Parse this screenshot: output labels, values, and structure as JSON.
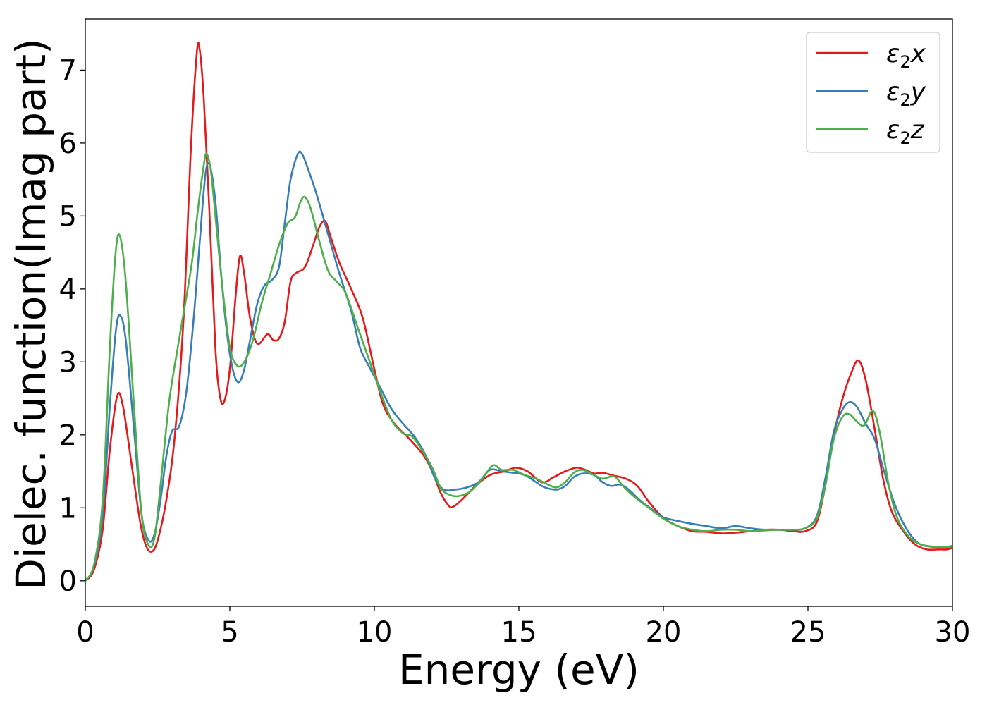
{
  "chart_data": {
    "type": "line",
    "xlabel": "Energy (eV)",
    "ylabel": "Dielec. function(Imag part)",
    "xlim": [
      0,
      30
    ],
    "ylim": [
      -0.35,
      7.7
    ],
    "xticks": [
      0,
      5,
      10,
      15,
      20,
      25,
      30
    ],
    "yticks": [
      0,
      1,
      2,
      3,
      4,
      5,
      6,
      7
    ],
    "grid": false,
    "legend_position": "top-right",
    "series": [
      {
        "name": "ε2x",
        "legend_base": "ε",
        "legend_sub": "2",
        "legend_tail": "x",
        "color": "#e41a1c",
        "points": [
          [
            0,
            0
          ],
          [
            0.3,
            0.15
          ],
          [
            0.6,
            0.7
          ],
          [
            0.85,
            1.8
          ],
          [
            1.1,
            2.53
          ],
          [
            1.3,
            2.4
          ],
          [
            1.6,
            1.6
          ],
          [
            1.9,
            0.8
          ],
          [
            2.1,
            0.48
          ],
          [
            2.3,
            0.4
          ],
          [
            2.5,
            0.55
          ],
          [
            2.8,
            1.1
          ],
          [
            3.1,
            2.0
          ],
          [
            3.4,
            3.6
          ],
          [
            3.65,
            5.9
          ],
          [
            3.85,
            7.2
          ],
          [
            3.95,
            7.3
          ],
          [
            4.1,
            6.6
          ],
          [
            4.3,
            5.0
          ],
          [
            4.5,
            3.2
          ],
          [
            4.65,
            2.55
          ],
          [
            4.8,
            2.45
          ],
          [
            5.0,
            2.9
          ],
          [
            5.2,
            3.9
          ],
          [
            5.35,
            4.45
          ],
          [
            5.5,
            4.2
          ],
          [
            5.7,
            3.6
          ],
          [
            5.95,
            3.25
          ],
          [
            6.3,
            3.38
          ],
          [
            6.5,
            3.3
          ],
          [
            6.7,
            3.32
          ],
          [
            6.9,
            3.55
          ],
          [
            7.1,
            4.1
          ],
          [
            7.3,
            4.22
          ],
          [
            7.6,
            4.3
          ],
          [
            7.9,
            4.62
          ],
          [
            8.1,
            4.85
          ],
          [
            8.3,
            4.93
          ],
          [
            8.5,
            4.7
          ],
          [
            8.8,
            4.35
          ],
          [
            9.2,
            4.0
          ],
          [
            9.6,
            3.6
          ],
          [
            10.0,
            2.9
          ],
          [
            10.3,
            2.42
          ],
          [
            10.7,
            2.15
          ],
          [
            11.2,
            1.95
          ],
          [
            11.7,
            1.72
          ],
          [
            12.0,
            1.5
          ],
          [
            12.3,
            1.2
          ],
          [
            12.55,
            1.04
          ],
          [
            12.7,
            1.01
          ],
          [
            13.0,
            1.1
          ],
          [
            13.5,
            1.3
          ],
          [
            14.0,
            1.45
          ],
          [
            14.5,
            1.5
          ],
          [
            14.9,
            1.55
          ],
          [
            15.3,
            1.5
          ],
          [
            15.8,
            1.35
          ],
          [
            16.2,
            1.42
          ],
          [
            16.6,
            1.5
          ],
          [
            17.0,
            1.55
          ],
          [
            17.3,
            1.52
          ],
          [
            17.6,
            1.47
          ],
          [
            17.9,
            1.48
          ],
          [
            18.3,
            1.44
          ],
          [
            18.7,
            1.4
          ],
          [
            19.1,
            1.3
          ],
          [
            19.5,
            1.08
          ],
          [
            20.0,
            0.86
          ],
          [
            20.5,
            0.75
          ],
          [
            21.0,
            0.68
          ],
          [
            21.5,
            0.67
          ],
          [
            22.0,
            0.65
          ],
          [
            22.5,
            0.66
          ],
          [
            23.0,
            0.68
          ],
          [
            23.5,
            0.7
          ],
          [
            24.0,
            0.7
          ],
          [
            24.5,
            0.68
          ],
          [
            24.9,
            0.68
          ],
          [
            25.3,
            0.8
          ],
          [
            25.6,
            1.3
          ],
          [
            25.9,
            2.0
          ],
          [
            26.2,
            2.5
          ],
          [
            26.5,
            2.85
          ],
          [
            26.75,
            3.02
          ],
          [
            27.0,
            2.75
          ],
          [
            27.3,
            2.1
          ],
          [
            27.6,
            1.4
          ],
          [
            27.9,
            0.95
          ],
          [
            28.3,
            0.68
          ],
          [
            28.7,
            0.5
          ],
          [
            29.1,
            0.43
          ],
          [
            29.5,
            0.43
          ],
          [
            29.8,
            0.43
          ],
          [
            30.0,
            0.45
          ]
        ]
      },
      {
        "name": "ε2y",
        "legend_base": "ε",
        "legend_sub": "2",
        "legend_tail": "y",
        "color": "#377eb8",
        "points": [
          [
            0,
            0
          ],
          [
            0.3,
            0.2
          ],
          [
            0.6,
            0.9
          ],
          [
            0.85,
            2.4
          ],
          [
            1.05,
            3.4
          ],
          [
            1.2,
            3.64
          ],
          [
            1.4,
            3.3
          ],
          [
            1.7,
            2.0
          ],
          [
            1.95,
            0.9
          ],
          [
            2.2,
            0.55
          ],
          [
            2.4,
            0.65
          ],
          [
            2.6,
            1.1
          ],
          [
            2.8,
            1.7
          ],
          [
            3.0,
            2.05
          ],
          [
            3.25,
            2.12
          ],
          [
            3.5,
            2.6
          ],
          [
            3.75,
            3.6
          ],
          [
            3.95,
            4.6
          ],
          [
            4.15,
            5.55
          ],
          [
            4.3,
            5.7
          ],
          [
            4.5,
            5.2
          ],
          [
            4.7,
            4.2
          ],
          [
            4.9,
            3.4
          ],
          [
            5.1,
            2.9
          ],
          [
            5.3,
            2.72
          ],
          [
            5.5,
            2.9
          ],
          [
            5.7,
            3.3
          ],
          [
            5.95,
            3.8
          ],
          [
            6.2,
            4.05
          ],
          [
            6.45,
            4.12
          ],
          [
            6.7,
            4.3
          ],
          [
            6.9,
            4.9
          ],
          [
            7.1,
            5.5
          ],
          [
            7.35,
            5.85
          ],
          [
            7.5,
            5.85
          ],
          [
            7.7,
            5.65
          ],
          [
            8.0,
            5.3
          ],
          [
            8.4,
            4.75
          ],
          [
            8.8,
            4.2
          ],
          [
            9.2,
            3.7
          ],
          [
            9.5,
            3.2
          ],
          [
            9.8,
            2.95
          ],
          [
            10.2,
            2.65
          ],
          [
            10.6,
            2.35
          ],
          [
            11.0,
            2.15
          ],
          [
            11.4,
            1.97
          ],
          [
            11.8,
            1.7
          ],
          [
            12.1,
            1.4
          ],
          [
            12.4,
            1.25
          ],
          [
            12.8,
            1.25
          ],
          [
            13.2,
            1.28
          ],
          [
            13.6,
            1.35
          ],
          [
            14.0,
            1.52
          ],
          [
            14.4,
            1.5
          ],
          [
            14.8,
            1.48
          ],
          [
            15.2,
            1.45
          ],
          [
            15.6,
            1.35
          ],
          [
            15.9,
            1.28
          ],
          [
            16.3,
            1.25
          ],
          [
            16.6,
            1.3
          ],
          [
            16.9,
            1.42
          ],
          [
            17.2,
            1.47
          ],
          [
            17.6,
            1.45
          ],
          [
            17.9,
            1.35
          ],
          [
            18.2,
            1.3
          ],
          [
            18.5,
            1.32
          ],
          [
            18.8,
            1.25
          ],
          [
            19.2,
            1.1
          ],
          [
            19.6,
            0.98
          ],
          [
            20.0,
            0.87
          ],
          [
            20.5,
            0.82
          ],
          [
            21.0,
            0.78
          ],
          [
            21.5,
            0.75
          ],
          [
            22.0,
            0.72
          ],
          [
            22.5,
            0.75
          ],
          [
            23.0,
            0.72
          ],
          [
            23.5,
            0.7
          ],
          [
            24.0,
            0.7
          ],
          [
            24.5,
            0.7
          ],
          [
            24.9,
            0.72
          ],
          [
            25.3,
            0.88
          ],
          [
            25.6,
            1.4
          ],
          [
            25.9,
            2.05
          ],
          [
            26.2,
            2.35
          ],
          [
            26.45,
            2.45
          ],
          [
            26.7,
            2.38
          ],
          [
            27.0,
            2.15
          ],
          [
            27.3,
            1.95
          ],
          [
            27.6,
            1.55
          ],
          [
            28.0,
            1.05
          ],
          [
            28.4,
            0.72
          ],
          [
            28.8,
            0.52
          ],
          [
            29.2,
            0.47
          ],
          [
            29.6,
            0.46
          ],
          [
            30.0,
            0.47
          ]
        ]
      },
      {
        "name": "ε2z",
        "legend_base": "ε",
        "legend_sub": "2",
        "legend_tail": "z",
        "color": "#4daf4a",
        "points": [
          [
            0,
            0
          ],
          [
            0.3,
            0.22
          ],
          [
            0.6,
            1.1
          ],
          [
            0.85,
            3.2
          ],
          [
            1.05,
            4.5
          ],
          [
            1.2,
            4.72
          ],
          [
            1.4,
            4.1
          ],
          [
            1.7,
            2.3
          ],
          [
            1.95,
            0.9
          ],
          [
            2.2,
            0.48
          ],
          [
            2.4,
            0.6
          ],
          [
            2.6,
            1.3
          ],
          [
            2.9,
            2.45
          ],
          [
            3.2,
            3.2
          ],
          [
            3.5,
            3.9
          ],
          [
            3.7,
            4.4
          ],
          [
            3.9,
            5.1
          ],
          [
            4.1,
            5.7
          ],
          [
            4.2,
            5.85
          ],
          [
            4.35,
            5.6
          ],
          [
            4.55,
            4.8
          ],
          [
            4.75,
            4.0
          ],
          [
            5.0,
            3.2
          ],
          [
            5.25,
            2.95
          ],
          [
            5.5,
            3.0
          ],
          [
            5.8,
            3.3
          ],
          [
            6.1,
            3.8
          ],
          [
            6.4,
            4.2
          ],
          [
            6.7,
            4.6
          ],
          [
            7.0,
            4.9
          ],
          [
            7.25,
            4.98
          ],
          [
            7.45,
            5.2
          ],
          [
            7.6,
            5.26
          ],
          [
            7.8,
            5.1
          ],
          [
            8.1,
            4.65
          ],
          [
            8.4,
            4.25
          ],
          [
            8.7,
            4.1
          ],
          [
            9.0,
            3.95
          ],
          [
            9.4,
            3.5
          ],
          [
            9.8,
            3.05
          ],
          [
            10.2,
            2.6
          ],
          [
            10.6,
            2.2
          ],
          [
            11.0,
            2.02
          ],
          [
            11.3,
            1.98
          ],
          [
            11.6,
            1.82
          ],
          [
            12.0,
            1.55
          ],
          [
            12.3,
            1.27
          ],
          [
            12.6,
            1.18
          ],
          [
            12.9,
            1.16
          ],
          [
            13.3,
            1.22
          ],
          [
            13.7,
            1.38
          ],
          [
            14.1,
            1.58
          ],
          [
            14.4,
            1.52
          ],
          [
            14.8,
            1.52
          ],
          [
            15.2,
            1.45
          ],
          [
            15.6,
            1.4
          ],
          [
            16.0,
            1.32
          ],
          [
            16.3,
            1.28
          ],
          [
            16.6,
            1.35
          ],
          [
            16.9,
            1.48
          ],
          [
            17.2,
            1.52
          ],
          [
            17.6,
            1.45
          ],
          [
            17.9,
            1.4
          ],
          [
            18.3,
            1.43
          ],
          [
            18.6,
            1.3
          ],
          [
            19.0,
            1.15
          ],
          [
            19.5,
            1.0
          ],
          [
            20.0,
            0.85
          ],
          [
            20.5,
            0.75
          ],
          [
            21.0,
            0.7
          ],
          [
            21.5,
            0.68
          ],
          [
            22.0,
            0.7
          ],
          [
            22.5,
            0.7
          ],
          [
            23.0,
            0.68
          ],
          [
            23.5,
            0.69
          ],
          [
            24.0,
            0.7
          ],
          [
            24.5,
            0.7
          ],
          [
            24.9,
            0.72
          ],
          [
            25.3,
            0.85
          ],
          [
            25.6,
            1.3
          ],
          [
            25.9,
            1.95
          ],
          [
            26.2,
            2.25
          ],
          [
            26.45,
            2.28
          ],
          [
            26.7,
            2.18
          ],
          [
            26.95,
            2.13
          ],
          [
            27.25,
            2.33
          ],
          [
            27.5,
            2.0
          ],
          [
            27.8,
            1.3
          ],
          [
            28.1,
            0.85
          ],
          [
            28.5,
            0.6
          ],
          [
            28.9,
            0.5
          ],
          [
            29.3,
            0.47
          ],
          [
            29.7,
            0.46
          ],
          [
            30.0,
            0.48
          ]
        ]
      }
    ]
  }
}
